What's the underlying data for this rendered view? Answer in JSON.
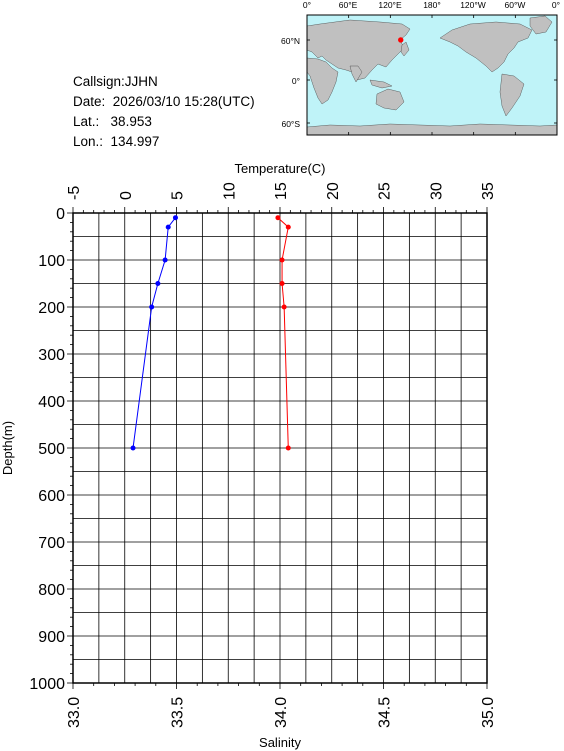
{
  "station": {
    "callsign_label": "Callsign:",
    "callsign": "JJHN",
    "date_label": "Date:",
    "date": "2026/03/10 15:28(UTC)",
    "lat_label": "Lat.:",
    "lat": "38.953",
    "lon_label": "Lon.:",
    "lon": "134.997"
  },
  "map": {
    "lon_labels": [
      "0°",
      "60°E",
      "120°E",
      "180°",
      "120°W",
      "60°W",
      "0°"
    ],
    "lat_labels": [
      "60°N",
      "0°",
      "60°S"
    ],
    "ocean_color": "#bff3f8",
    "land_color": "#c0c0c0",
    "marker_color": "#ff0000",
    "marker_lat": 38.953,
    "marker_lon": 134.997
  },
  "chart_data": {
    "type": "line",
    "ylabel": "Depth(m)",
    "ylim": [
      1000,
      0
    ],
    "y_ticks": [
      0,
      100,
      200,
      300,
      400,
      500,
      600,
      700,
      800,
      900,
      1000
    ],
    "grid": true,
    "top_axis": {
      "label": "Temperature(C)",
      "range": [
        -5,
        35
      ],
      "ticks": [
        -5,
        0,
        5,
        10,
        15,
        20,
        25,
        30,
        35
      ]
    },
    "bottom_axis": {
      "label": "Salinity",
      "range": [
        33.0,
        35.0
      ],
      "ticks": [
        "33.0",
        "33.5",
        "34.0",
        "34.5",
        "35.0"
      ]
    },
    "series": [
      {
        "axis": "top",
        "color": "#0000ff",
        "depth": [
          10,
          30,
          100,
          150,
          200,
          500
        ],
        "values": [
          4.9,
          4.2,
          3.9,
          3.2,
          2.6,
          0.8
        ]
      },
      {
        "axis": "bottom",
        "color": "#ff0000",
        "depth": [
          10,
          30,
          100,
          150,
          200,
          500
        ],
        "values": [
          33.99,
          34.04,
          34.01,
          34.01,
          34.02,
          34.04
        ]
      }
    ]
  }
}
